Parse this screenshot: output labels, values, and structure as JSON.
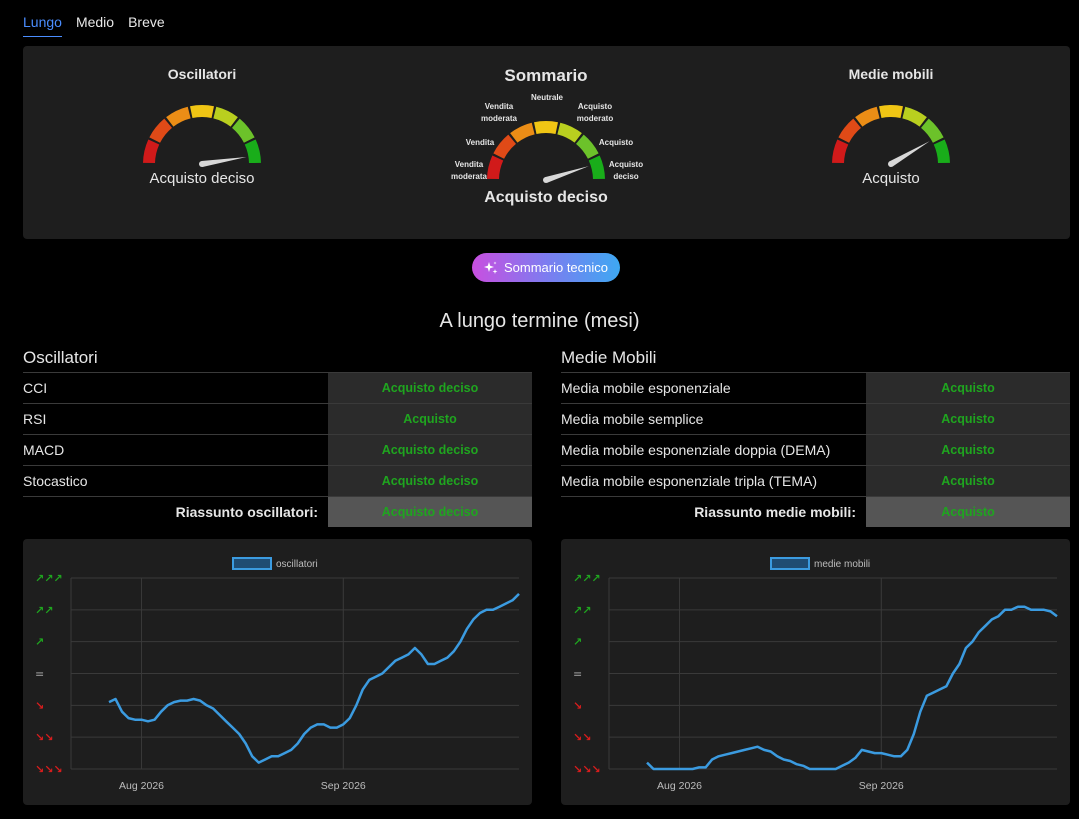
{
  "tabs": [
    {
      "label": "Lungo",
      "active": true
    },
    {
      "label": "Medio",
      "active": false
    },
    {
      "label": "Breve",
      "active": false
    }
  ],
  "gauges": {
    "oscillators": {
      "title": "Oscillatori",
      "label": "Acquisto deciso",
      "level": 0.95
    },
    "summary": {
      "title": "Sommario",
      "label": "Acquisto deciso",
      "level": 0.9,
      "ticks": {
        "strong_sell": "Vendita moderata",
        "sell": "Vendita",
        "moderate_sell": "Vendita moderata",
        "neutral": "Neutrale",
        "moderate_buy": "Acquisto moderato",
        "buy": "Acquisto",
        "strong_buy": "Acquisto deciso"
      }
    },
    "moving_averages": {
      "title": "Medie mobili",
      "label": "Acquisto",
      "level": 0.83
    }
  },
  "summary_button": {
    "label": "Sommario tecnico",
    "icon": "sparkle-icon"
  },
  "section_title": "A lungo termine (mesi)",
  "oscillators_table": {
    "title": "Oscillatori",
    "rows": [
      {
        "name": "CCI",
        "value": "Acquisto deciso"
      },
      {
        "name": "RSI",
        "value": "Acquisto"
      },
      {
        "name": "MACD",
        "value": "Acquisto deciso"
      },
      {
        "name": "Stocastico",
        "value": "Acquisto deciso"
      }
    ],
    "summary_label": "Riassunto oscillatori:",
    "summary_value": "Acquisto deciso"
  },
  "ma_table": {
    "title": "Medie Mobili",
    "rows": [
      {
        "name": "Media mobile esponenziale",
        "value": "Acquisto"
      },
      {
        "name": "Media mobile semplice",
        "value": "Acquisto"
      },
      {
        "name": "Media mobile esponenziale doppia (DEMA)",
        "value": "Acquisto"
      },
      {
        "name": "Media mobile esponenziale tripla (TEMA)",
        "value": "Acquisto"
      }
    ],
    "summary_label": "Riassunto medie mobili:",
    "summary_value": "Acquisto"
  },
  "colors": {
    "buy_green": "#1fa51f",
    "sell_red": "#d81d1d",
    "line_blue": "#3b9be0",
    "accent_blue": "#4a8dff"
  },
  "chart_data": [
    {
      "type": "line",
      "legend": "oscillatori",
      "y_icons": [
        "↗↗↗",
        "↗↗",
        "↗",
        "=",
        "↘",
        "↘↘",
        "↘↘↘"
      ],
      "x_ticks": [
        "Aug 2026",
        "Sep 2026"
      ],
      "ylim": [
        -3,
        3
      ],
      "x": [
        "2026-07-27",
        "2026-07-28",
        "2026-07-29",
        "2026-07-30",
        "2026-07-31",
        "2026-08-01",
        "2026-08-02",
        "2026-08-03",
        "2026-08-04",
        "2026-08-05",
        "2026-08-06",
        "2026-08-07",
        "2026-08-08",
        "2026-08-09",
        "2026-08-10",
        "2026-08-11",
        "2026-08-12",
        "2026-08-13",
        "2026-08-14",
        "2026-08-15",
        "2026-08-16",
        "2026-08-17",
        "2026-08-18",
        "2026-08-19",
        "2026-08-20",
        "2026-08-21",
        "2026-08-22",
        "2026-08-23",
        "2026-08-24",
        "2026-08-25",
        "2026-08-26",
        "2026-08-27",
        "2026-08-28",
        "2026-08-29",
        "2026-08-30",
        "2026-08-31",
        "2026-09-01",
        "2026-09-02",
        "2026-09-03",
        "2026-09-04",
        "2026-09-05",
        "2026-09-06",
        "2026-09-07",
        "2026-09-08",
        "2026-09-09",
        "2026-09-10",
        "2026-09-11",
        "2026-09-12",
        "2026-09-13",
        "2026-09-14",
        "2026-09-15",
        "2026-09-16",
        "2026-09-17",
        "2026-09-18",
        "2026-09-19",
        "2026-09-20",
        "2026-09-21",
        "2026-09-22",
        "2026-09-23",
        "2026-09-24",
        "2026-09-25",
        "2026-09-26",
        "2026-09-27",
        "2026-09-28"
      ],
      "values": [
        -0.9,
        -0.8,
        -1.2,
        -1.4,
        -1.45,
        -1.45,
        -1.5,
        -1.45,
        -1.2,
        -1.0,
        -0.9,
        -0.85,
        -0.85,
        -0.8,
        -0.85,
        -1.0,
        -1.1,
        -1.3,
        -1.5,
        -1.7,
        -1.9,
        -2.2,
        -2.6,
        -2.8,
        -2.7,
        -2.6,
        -2.6,
        -2.5,
        -2.4,
        -2.2,
        -1.9,
        -1.7,
        -1.6,
        -1.6,
        -1.7,
        -1.7,
        -1.6,
        -1.4,
        -1.0,
        -0.5,
        -0.2,
        -0.1,
        0.0,
        0.2,
        0.4,
        0.5,
        0.6,
        0.8,
        0.6,
        0.3,
        0.3,
        0.4,
        0.5,
        0.7,
        1.0,
        1.4,
        1.7,
        1.9,
        2.0,
        2.0,
        2.1,
        2.2,
        2.3,
        2.5
      ]
    },
    {
      "type": "line",
      "legend": "medie mobili",
      "y_icons": [
        "↗↗↗",
        "↗↗",
        "↗",
        "=",
        "↘",
        "↘↘",
        "↘↘↘"
      ],
      "x_ticks": [
        "Aug 2026",
        "Sep 2026"
      ],
      "ylim": [
        -3,
        3
      ],
      "x": [
        "2026-07-27",
        "2026-07-28",
        "2026-07-29",
        "2026-07-30",
        "2026-07-31",
        "2026-08-01",
        "2026-08-02",
        "2026-08-03",
        "2026-08-04",
        "2026-08-05",
        "2026-08-06",
        "2026-08-07",
        "2026-08-08",
        "2026-08-09",
        "2026-08-10",
        "2026-08-11",
        "2026-08-12",
        "2026-08-13",
        "2026-08-14",
        "2026-08-15",
        "2026-08-16",
        "2026-08-17",
        "2026-08-18",
        "2026-08-19",
        "2026-08-20",
        "2026-08-21",
        "2026-08-22",
        "2026-08-23",
        "2026-08-24",
        "2026-08-25",
        "2026-08-26",
        "2026-08-27",
        "2026-08-28",
        "2026-08-29",
        "2026-08-30",
        "2026-08-31",
        "2026-09-01",
        "2026-09-02",
        "2026-09-03",
        "2026-09-04",
        "2026-09-05",
        "2026-09-06",
        "2026-09-07",
        "2026-09-08",
        "2026-09-09",
        "2026-09-10",
        "2026-09-11",
        "2026-09-12",
        "2026-09-13",
        "2026-09-14",
        "2026-09-15",
        "2026-09-16",
        "2026-09-17",
        "2026-09-18",
        "2026-09-19",
        "2026-09-20",
        "2026-09-21",
        "2026-09-22",
        "2026-09-23",
        "2026-09-24",
        "2026-09-25",
        "2026-09-26",
        "2026-09-27",
        "2026-09-28"
      ],
      "values": [
        -2.8,
        -3.0,
        -3.2,
        -3.2,
        -3.15,
        -3.1,
        -3.05,
        -3.0,
        -2.95,
        -2.95,
        -2.7,
        -2.6,
        -2.55,
        -2.5,
        -2.45,
        -2.4,
        -2.35,
        -2.3,
        -2.4,
        -2.45,
        -2.6,
        -2.7,
        -2.75,
        -2.85,
        -2.9,
        -3.0,
        -3.2,
        -3.15,
        -3.1,
        -3.0,
        -2.9,
        -2.8,
        -2.65,
        -2.4,
        -2.45,
        -2.5,
        -2.5,
        -2.55,
        -2.6,
        -2.6,
        -2.4,
        -1.9,
        -1.2,
        -0.7,
        -0.6,
        -0.5,
        -0.4,
        0.0,
        0.3,
        0.8,
        1.0,
        1.3,
        1.5,
        1.7,
        1.8,
        2.0,
        2.0,
        2.1,
        2.1,
        2.0,
        2.0,
        2.0,
        1.95,
        1.8
      ]
    }
  ]
}
